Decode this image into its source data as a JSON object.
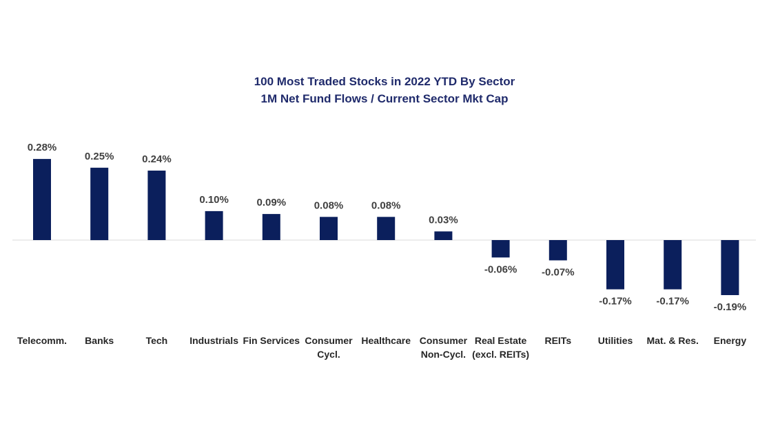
{
  "chart_data": {
    "type": "bar",
    "title_lines": [
      "100 Most Traded Stocks in 2022 YTD By Sector",
      "1M Net Fund Flows / Current Sector Mkt Cap"
    ],
    "categories": [
      [
        "Telecomm."
      ],
      [
        "Banks"
      ],
      [
        "Tech"
      ],
      [
        "Industrials"
      ],
      [
        "Fin Services"
      ],
      [
        "Consumer",
        "Cycl."
      ],
      [
        "Healthcare"
      ],
      [
        "Consumer",
        "Non-Cycl."
      ],
      [
        "Real Estate",
        "(excl. REITs)"
      ],
      [
        "REITs"
      ],
      [
        "Utilities"
      ],
      [
        "Mat. & Res."
      ],
      [
        "Energy"
      ]
    ],
    "values": [
      0.28,
      0.25,
      0.24,
      0.1,
      0.09,
      0.08,
      0.08,
      0.03,
      -0.06,
      -0.07,
      -0.17,
      -0.17,
      -0.19
    ],
    "data_labels": [
      "0.28%",
      "0.25%",
      "0.24%",
      "0.10%",
      "0.09%",
      "0.08%",
      "0.08%",
      "0.03%",
      "-0.06%",
      "-0.07%",
      "-0.17%",
      "-0.17%",
      "-0.19%"
    ],
    "unit": "%",
    "ylim": [
      -0.19,
      0.28
    ],
    "grid": false,
    "legend": "none",
    "colors": {
      "bar": "#0b1f5c",
      "title": "#1f2a6b",
      "data_label": "#404040",
      "axis_label": "#262626",
      "zero_line": "#d9d9d9"
    }
  }
}
